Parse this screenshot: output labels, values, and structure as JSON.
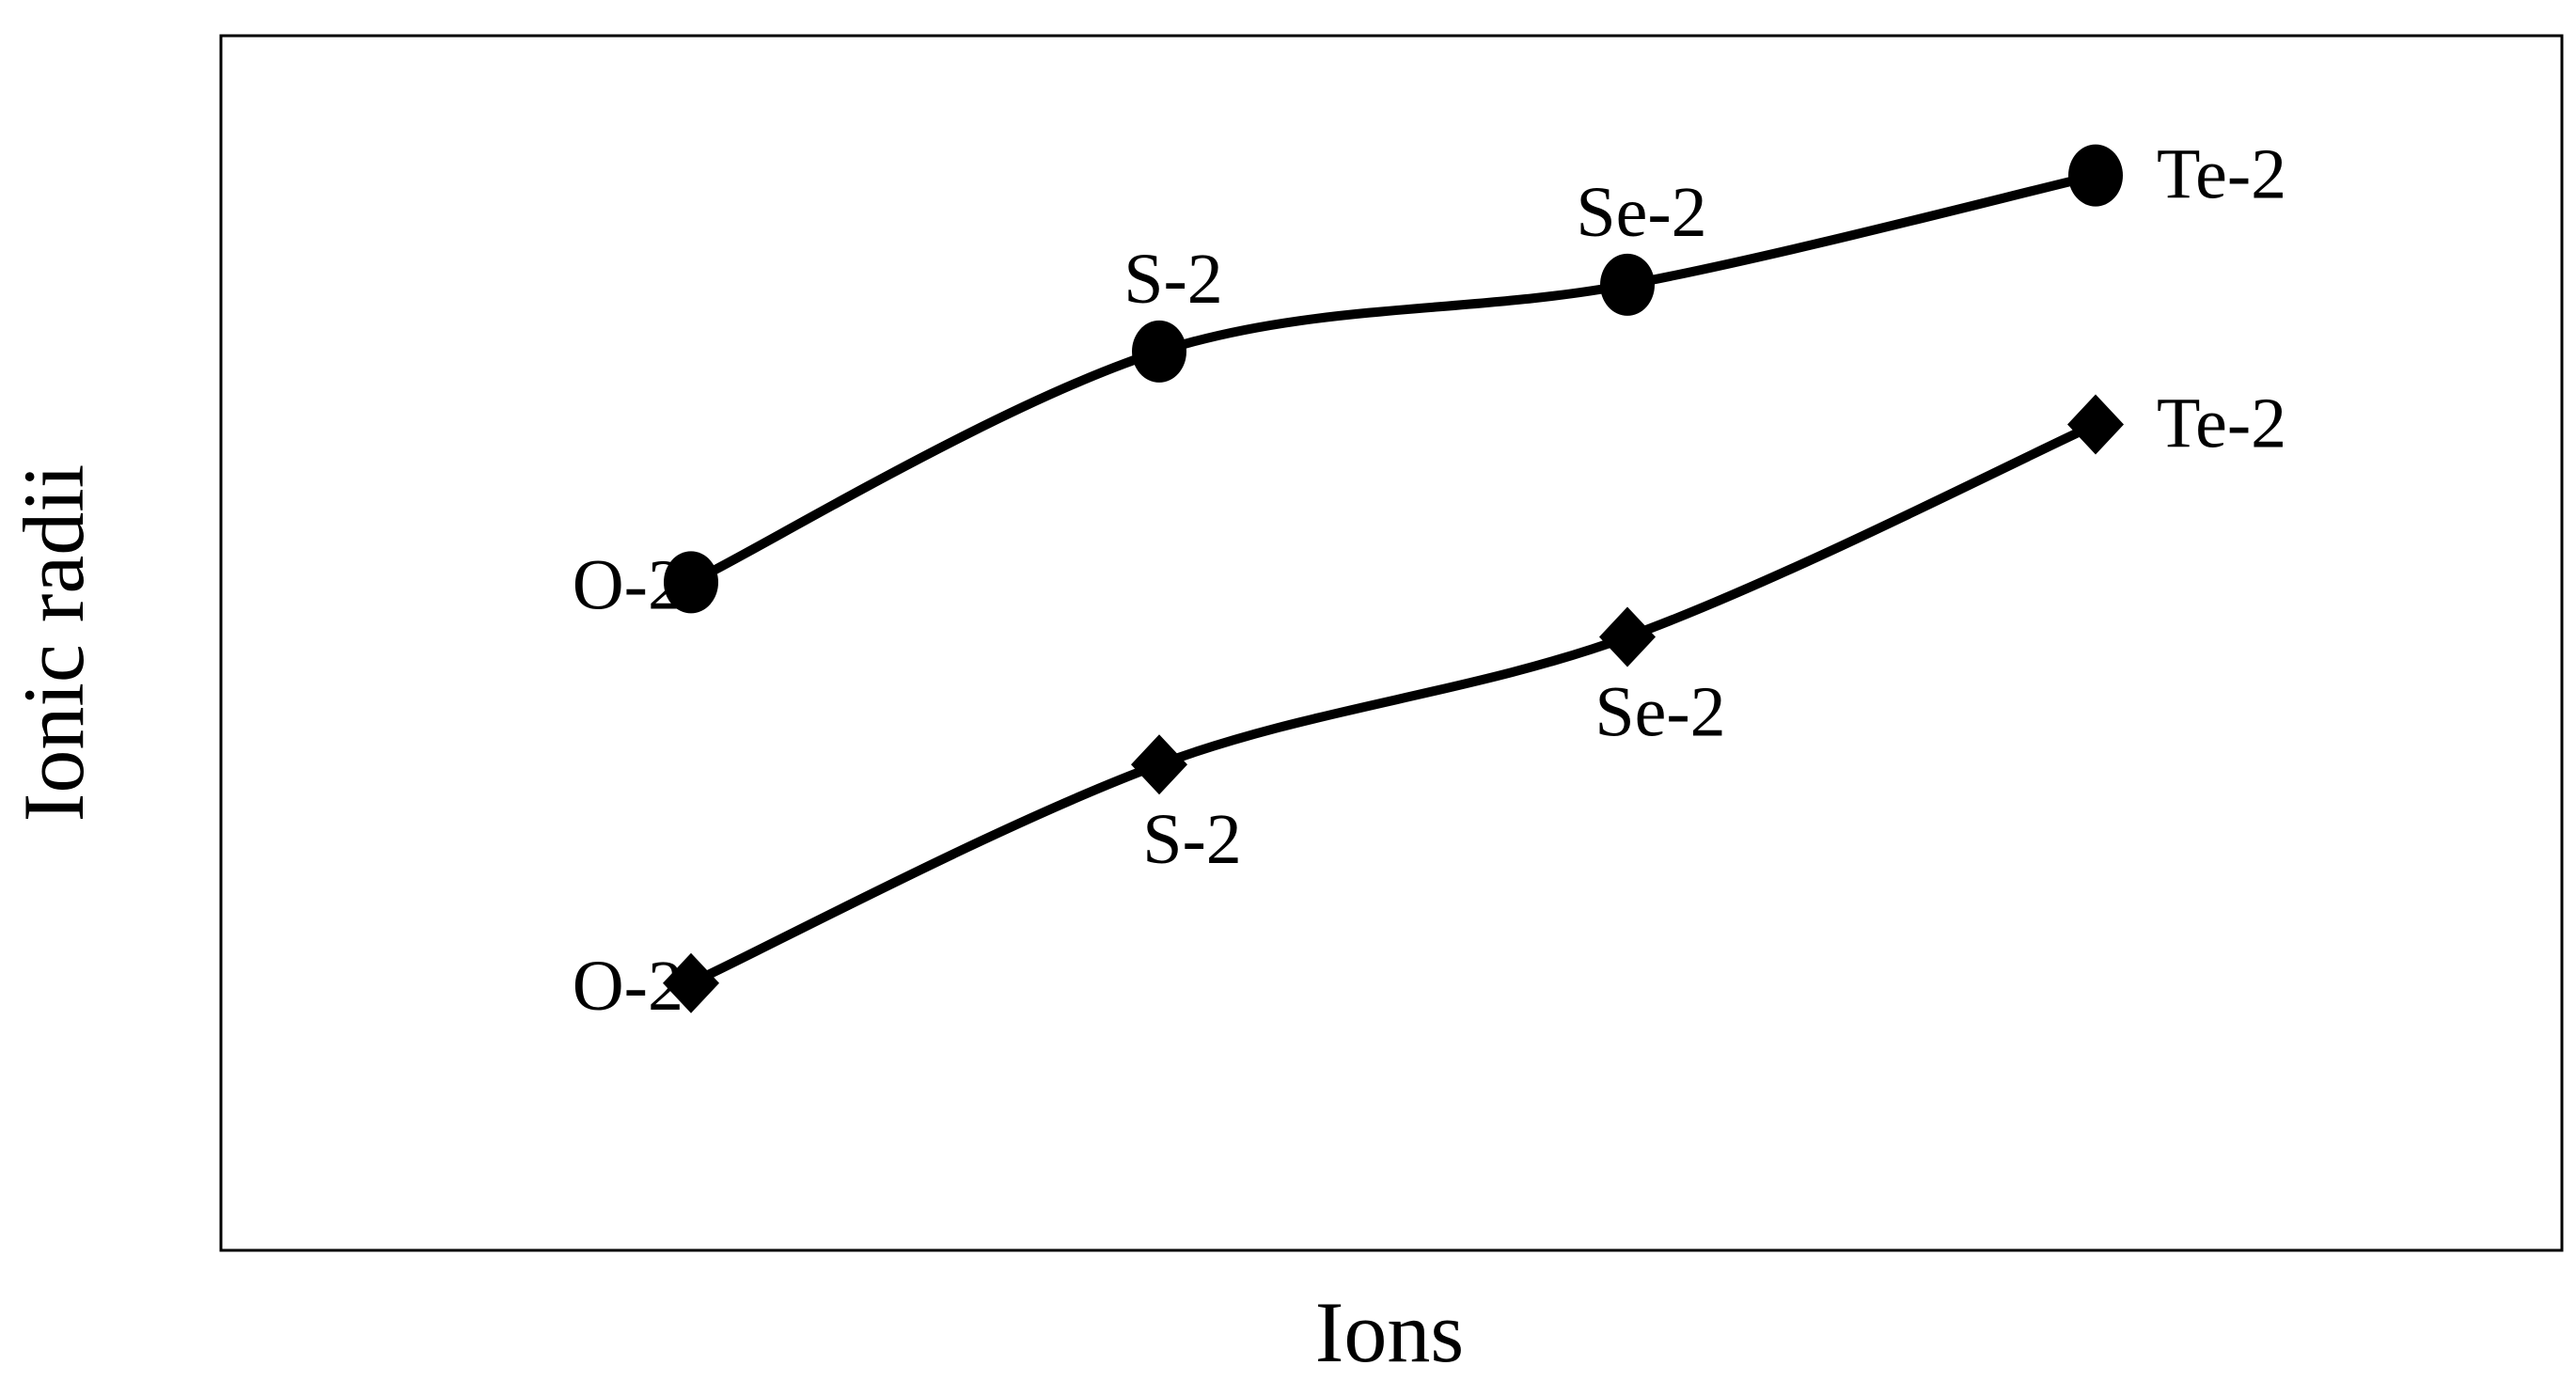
{
  "chart_data": {
    "type": "line",
    "title": "",
    "xlabel": "Ions",
    "ylabel": "Ionic radii",
    "categories": [
      "O-2",
      "S-2",
      "Se-2",
      "Te-2"
    ],
    "ylim": [
      0,
      100
    ],
    "grid": false,
    "legend": "none",
    "series": [
      {
        "marker": "circle",
        "color": "#000000",
        "values": [
          55,
          74,
          79.5,
          88.5
        ],
        "point_labels": [
          "O-2",
          "S-2",
          "Se-2",
          "Te-2"
        ],
        "label_side": [
          "left",
          "above",
          "above",
          "right"
        ]
      },
      {
        "marker": "diamond",
        "color": "#000000",
        "values": [
          22,
          40,
          50.5,
          68
        ],
        "point_labels": [
          "O-2",
          "S-2",
          "Se-2",
          "Te-2"
        ],
        "label_side": [
          "left",
          "below",
          "below",
          "right"
        ]
      }
    ]
  }
}
